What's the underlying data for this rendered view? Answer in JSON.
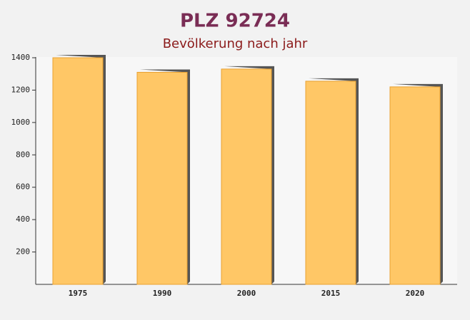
{
  "chart_data": {
    "type": "bar",
    "title": "PLZ 92724",
    "subtitle": "Bevölkerung nach jahr",
    "categories": [
      "1975",
      "1990",
      "2000",
      "2015",
      "2020"
    ],
    "values": [
      1400,
      1310,
      1330,
      1255,
      1220
    ],
    "color": "#ffc766",
    "ylim": [
      0,
      1400
    ],
    "yticks": [
      200,
      400,
      600,
      800,
      1000,
      1200,
      1400
    ],
    "grid": false
  }
}
